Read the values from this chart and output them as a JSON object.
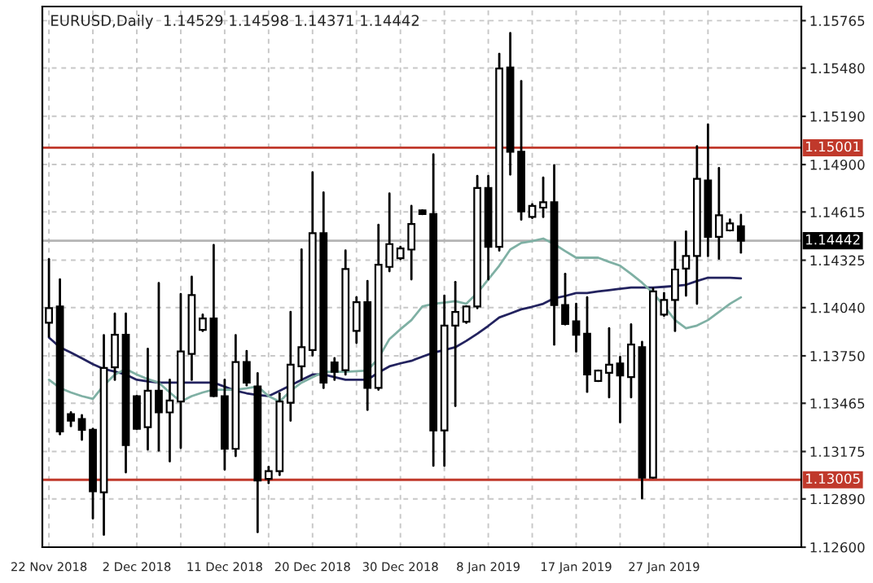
{
  "chart_data": {
    "type": "candlestick",
    "title": "EURUSD,Daily  1.14529 1.14598 1.14371 1.14442",
    "categories": [
      "22 Nov 2018",
      null,
      null,
      null,
      null,
      null,
      null,
      null,
      "2 Dec 2018",
      null,
      null,
      null,
      null,
      null,
      null,
      null,
      "11 Dec 2018",
      null,
      null,
      null,
      null,
      null,
      null,
      null,
      "20 Dec 2018",
      null,
      null,
      null,
      null,
      null,
      null,
      null,
      "30 Dec 2018",
      null,
      null,
      null,
      null,
      null,
      null,
      null,
      "8 Jan 2019",
      null,
      null,
      null,
      null,
      null,
      null,
      null,
      "17 Jan 2019",
      null,
      null,
      null,
      null,
      null,
      null,
      null,
      "27 Jan 2019",
      null,
      null,
      null,
      null,
      null,
      null,
      null
    ],
    "ohlc": [
      [
        1.13949,
        1.14331,
        1.13867,
        1.14037
      ],
      [
        1.14047,
        1.1421,
        1.13279,
        1.13295
      ],
      [
        1.134,
        1.1341,
        1.13328,
        1.13361
      ],
      [
        1.1337,
        1.13393,
        1.13246,
        1.13305
      ],
      [
        1.13305,
        1.13312,
        1.12773,
        1.12936
      ],
      [
        1.1293,
        1.13874,
        1.12675,
        1.13677
      ],
      [
        1.13681,
        1.14004,
        1.13606,
        1.13877
      ],
      [
        1.13877,
        1.14004,
        1.1305,
        1.13214
      ],
      [
        1.13508,
        1.13508,
        1.13312,
        1.13312
      ],
      [
        1.13321,
        1.13792,
        1.13187,
        1.1354
      ],
      [
        1.1354,
        1.14187,
        1.13181,
        1.1341
      ],
      [
        1.1341,
        1.13606,
        1.13116,
        1.13482
      ],
      [
        1.13475,
        1.14122,
        1.13197,
        1.13776
      ],
      [
        1.13762,
        1.14226,
        1.13606,
        1.14115
      ],
      [
        1.13906,
        1.13998,
        1.139,
        1.13975
      ],
      [
        1.13975,
        1.14416,
        1.13508,
        1.13508
      ],
      [
        1.13508,
        1.13606,
        1.13067,
        1.13191
      ],
      [
        1.13191,
        1.13874,
        1.13148,
        1.13713
      ],
      [
        1.13713,
        1.13779,
        1.13573,
        1.13589
      ],
      [
        1.13566,
        1.13645,
        1.12691,
        1.13001
      ],
      [
        1.13011,
        1.13083,
        1.12985,
        1.13057
      ],
      [
        1.13057,
        1.13524,
        1.13034,
        1.13475
      ],
      [
        1.13468,
        1.14014,
        1.13361,
        1.13697
      ],
      [
        1.13687,
        1.14389,
        1.13606,
        1.13802
      ],
      [
        1.13785,
        1.14853,
        1.13753,
        1.14487
      ],
      [
        1.14487,
        1.14732,
        1.13557,
        1.13589
      ],
      [
        1.1371,
        1.13736,
        1.13606,
        1.13654
      ],
      [
        1.13664,
        1.14383,
        1.13638,
        1.14272
      ],
      [
        1.139,
        1.14102,
        1.13828,
        1.14073
      ],
      [
        1.14073,
        1.142,
        1.13426,
        1.13557
      ],
      [
        1.13557,
        1.14537,
        1.13547,
        1.14298
      ],
      [
        1.14285,
        1.14726,
        1.14259,
        1.14422
      ],
      [
        1.14337,
        1.14406,
        1.14331,
        1.14396
      ],
      [
        1.14389,
        1.14651,
        1.1421,
        1.14543
      ],
      [
        1.14625,
        1.14625,
        1.14602,
        1.14602
      ],
      [
        1.14602,
        1.14961,
        1.1309,
        1.13302
      ],
      [
        1.13302,
        1.14112,
        1.1309,
        1.13932
      ],
      [
        1.13932,
        1.14194,
        1.13449,
        1.14014
      ],
      [
        1.13955,
        1.14047,
        1.13949,
        1.14047
      ],
      [
        1.14047,
        1.14831,
        1.14037,
        1.14759
      ],
      [
        1.14759,
        1.14831,
        1.1421,
        1.14406
      ],
      [
        1.14406,
        1.15566,
        1.14383,
        1.15477
      ],
      [
        1.15484,
        1.1569,
        1.1484,
        1.14977
      ],
      [
        1.14977,
        1.15402,
        1.14569,
        1.14618
      ],
      [
        1.14585,
        1.14661,
        1.14579,
        1.14651
      ],
      [
        1.14641,
        1.14821,
        1.14585,
        1.14674
      ],
      [
        1.14674,
        1.14896,
        1.13818,
        1.14056
      ],
      [
        1.14056,
        1.14243,
        1.13939,
        1.13942
      ],
      [
        1.13958,
        1.14063,
        1.13776,
        1.13877
      ],
      [
        1.13883,
        1.14102,
        1.13534,
        1.13638
      ],
      [
        1.13599,
        1.13661,
        1.13599,
        1.13661
      ],
      [
        1.13648,
        1.13916,
        1.13501,
        1.13697
      ],
      [
        1.13704,
        1.13743,
        1.13351,
        1.13632
      ],
      [
        1.13622,
        1.13939,
        1.13501,
        1.13818
      ],
      [
        1.13802,
        1.13834,
        1.12894,
        1.13018
      ],
      [
        1.13018,
        1.14154,
        1.13018,
        1.14138
      ],
      [
        1.13998,
        1.14128,
        1.13991,
        1.14086
      ],
      [
        1.14086,
        1.14435,
        1.139,
        1.14269
      ],
      [
        1.14275,
        1.14497,
        1.14112,
        1.1435
      ],
      [
        1.1435,
        1.1501,
        1.14063,
        1.14814
      ],
      [
        1.14804,
        1.15141,
        1.1435,
        1.14465
      ],
      [
        1.14465,
        1.14879,
        1.14334,
        1.14595
      ],
      [
        1.14504,
        1.14569,
        1.14504,
        1.14546
      ],
      [
        1.14529,
        1.14598,
        1.14371,
        1.14442
      ]
    ],
    "series": [
      {
        "type": "line",
        "color": "#23235f",
        "values": [
          1.1386,
          1.13802,
          1.1377,
          1.13736,
          1.137,
          1.13671,
          1.13655,
          1.13638,
          1.13606,
          1.13597,
          1.13589,
          1.13589,
          1.13589,
          1.13589,
          1.13589,
          1.13589,
          1.13565,
          1.1354,
          1.13525,
          1.13515,
          1.13508,
          1.1354,
          1.13573,
          1.13606,
          1.13638,
          1.13638,
          1.13622,
          1.13606,
          1.13606,
          1.13606,
          1.1365,
          1.13687,
          1.13705,
          1.1372,
          1.13745,
          1.13769,
          1.13785,
          1.13802,
          1.1384,
          1.13883,
          1.1393,
          1.13981,
          1.14005,
          1.1403,
          1.14045,
          1.14063,
          1.14096,
          1.1411,
          1.14128,
          1.14128,
          1.14137,
          1.14145,
          1.14153,
          1.14161,
          1.14161,
          1.14161,
          1.14165,
          1.1417,
          1.14177,
          1.142,
          1.1422,
          1.1422,
          1.1422,
          1.14216
        ]
      },
      {
        "type": "line",
        "color": "#7fb0a4",
        "values": [
          1.13606,
          1.13557,
          1.1353,
          1.13508,
          1.13491,
          1.13573,
          1.13638,
          1.13671,
          1.13638,
          1.1361,
          1.13589,
          1.1353,
          1.13475,
          1.13508,
          1.1353,
          1.13547,
          1.13547,
          1.13547,
          1.13555,
          1.13566,
          1.13508,
          1.13475,
          1.1354,
          1.13589,
          1.13622,
          1.13654,
          1.13654,
          1.13654,
          1.13658,
          1.13661,
          1.13736,
          1.13851,
          1.1391,
          1.13965,
          1.14047,
          1.14063,
          1.1407,
          1.14079,
          1.14063,
          1.14128,
          1.1421,
          1.14292,
          1.14389,
          1.14429,
          1.1444,
          1.14455,
          1.14422,
          1.1438,
          1.1434,
          1.1434,
          1.1434,
          1.14315,
          1.14292,
          1.14243,
          1.1419,
          1.14128,
          1.1405,
          1.13965,
          1.13916,
          1.13932,
          1.13965,
          1.14014,
          1.14063,
          1.14102
        ]
      }
    ],
    "ylim": [
      1.126,
      1.1585
    ],
    "yticks": [
      1.15765,
      {
        "value": 1.1548,
        "label": "1.15480"
      },
      {
        "value": 1.1519,
        "label": "1.15190"
      },
      {
        "value": 1.149,
        "label": "1.14900"
      },
      1.14615,
      1.14325,
      {
        "value": 1.1404,
        "label": "1.14040"
      },
      {
        "value": 1.1375,
        "label": "1.13750"
      },
      1.13465,
      1.13175,
      {
        "value": 1.1289,
        "label": "1.12890"
      },
      {
        "value": 1.126,
        "label": "1.12600"
      }
    ],
    "ref_lines": [
      {
        "axis": "y",
        "value": 1.15001,
        "label": "1.15001",
        "color": "#c0392b"
      },
      {
        "axis": "y",
        "value": 1.13005,
        "label": "1.13005",
        "color": "#c0392b"
      },
      {
        "axis": "y",
        "value": 1.14442,
        "label": "1.14442",
        "color": "#b4b4b4"
      }
    ],
    "grid": true,
    "legend": false
  }
}
